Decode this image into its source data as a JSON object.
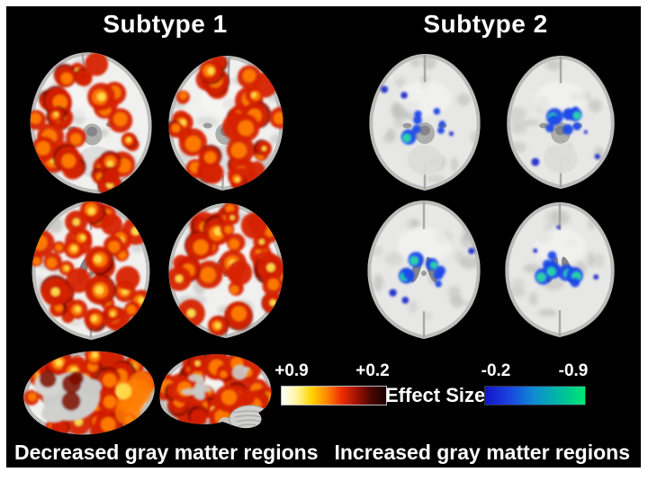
{
  "figure": {
    "subtype1": {
      "title": "Subtype 1",
      "caption": "Decreased gray matter regions",
      "overlay": "hot",
      "views": [
        "axial slice",
        "axial slice",
        "axial slice",
        "axial slice",
        "3D inferior surface view",
        "3D lateral surface view"
      ]
    },
    "subtype2": {
      "title": "Subtype 2",
      "caption": "Increased gray matter regions",
      "overlay": "cool",
      "views": [
        "axial slice",
        "axial slice",
        "axial slice",
        "axial slice"
      ]
    },
    "colorbar": {
      "title": "Effect Size",
      "hot": {
        "left_label": "+0.9",
        "right_label": "+0.2",
        "stops": [
          "#ffffff",
          "#fff69e",
          "#ffd400",
          "#ff8a00",
          "#ef2e00",
          "#a31200",
          "#4a0600",
          "#190100"
        ]
      },
      "cool": {
        "left_label": "-0.2",
        "right_label": "-0.9",
        "stops": [
          "#1414c8",
          "#1a46e0",
          "#0e8ed2",
          "#00bba0",
          "#00e673"
        ]
      }
    },
    "colors": {
      "page": "#ffffff",
      "canvas": "#000000",
      "text": "#ffffff",
      "brain_base_hot": "#f0f0ee",
      "brain_base_cool": "#e7e7e5",
      "brain_rim": "#b4b4b2",
      "sulci": "#bdbdbb",
      "deep_gray": "#86868a",
      "hot_dark": "#7c0e00",
      "hot_base": "#d62105",
      "hot_mid": "#ff7d00",
      "hot_core": "#ffe14e",
      "cool_base": "#1d49e8",
      "cool_deep": "#1822cc",
      "cool_core": "#2bd8a2"
    }
  }
}
